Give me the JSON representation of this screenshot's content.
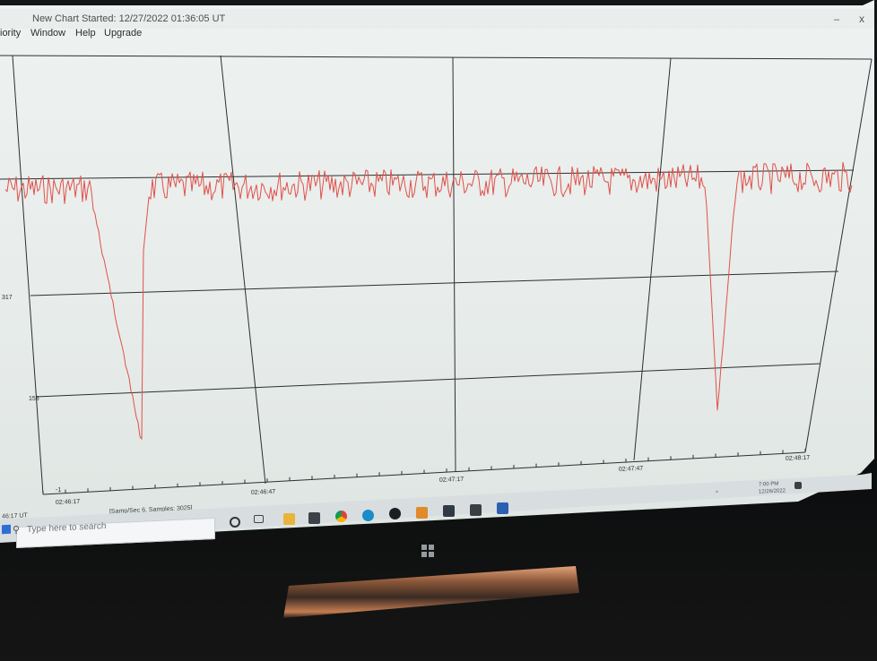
{
  "window": {
    "title": "New Chart Started: 12/27/2022 01:36:05 UT",
    "minimize_glyph": "–",
    "close_glyph": "x"
  },
  "menu": {
    "items": [
      "iority",
      "Window",
      "Help",
      "Upgrade"
    ]
  },
  "chart": {
    "y_tick_labels": [
      "317",
      "158",
      "-1"
    ],
    "x_tick_labels": [
      "02:46:17",
      "02:46:47",
      "02:47:17",
      "02:47:47",
      "02:48:17"
    ],
    "line_color": "#e0504a",
    "grid_color": "#2c2f31"
  },
  "statusbar": {
    "left_text": "46:17 UT",
    "mid_text": "[Samp/Sec 6,  Samples: 3025]"
  },
  "taskbar": {
    "search_placeholder": "Type here to search",
    "icons": [
      "cortana-icon",
      "task-view-icon",
      "file-explorer-icon",
      "store-icon",
      "chrome-icon",
      "edge-icon",
      "app-dark-icon",
      "app-orange-icon",
      "mail-icon",
      "lock-icon",
      "word-icon"
    ],
    "tray_time": "7:00 PM",
    "tray_date": "12/26/2022"
  },
  "colors": {
    "accent_blue": "#2b6fd6",
    "screen_bg": "#eaeeec",
    "trace": "#e0504a"
  }
}
